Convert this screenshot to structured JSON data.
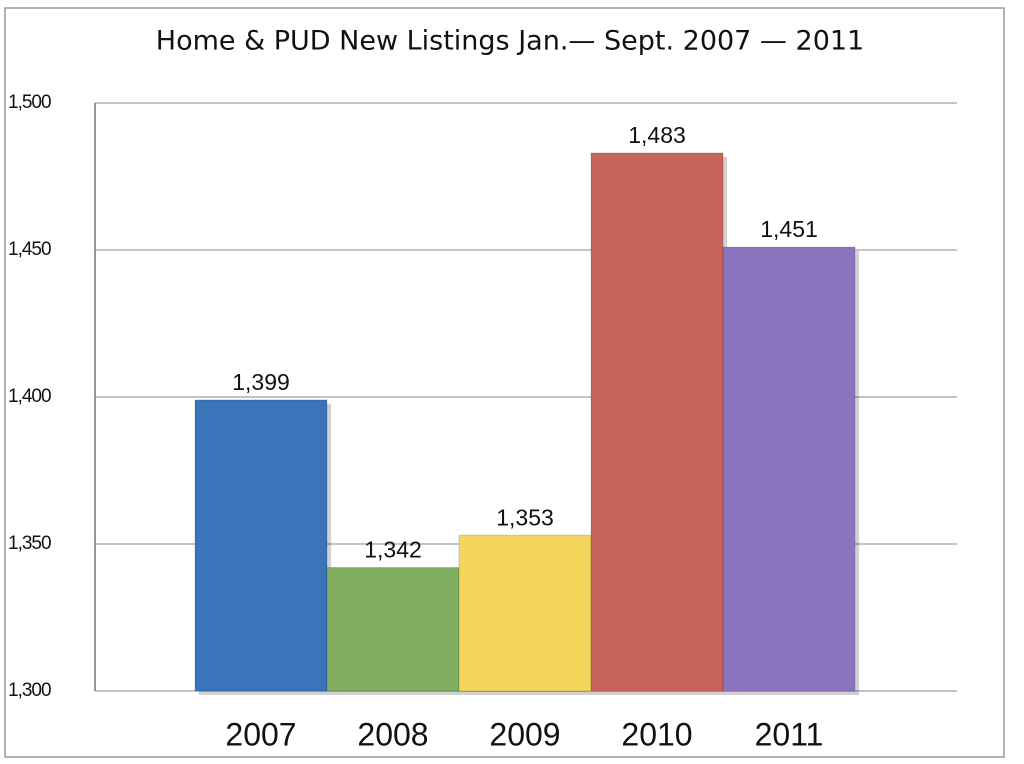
{
  "chart_data": {
    "type": "bar",
    "title": "Home & PUD New Listings Jan.— Sept. 2007 — 2011",
    "categories": [
      "2007",
      "2008",
      "2009",
      "2010",
      "2011"
    ],
    "values": [
      1399,
      1342,
      1353,
      1483,
      1451
    ],
    "value_labels": [
      "1,399",
      "1,342",
      "1,353",
      "1,483",
      "1,451"
    ],
    "colors": [
      "#3b74b9",
      "#80ad5f",
      "#f3d65b",
      "#c9645b",
      "#8b73bf"
    ],
    "ylim": [
      1300,
      1500
    ],
    "yticks": [
      {
        "value": 1300,
        "label": "1,300"
      },
      {
        "value": 1350,
        "label": "1,350"
      },
      {
        "value": 1400,
        "label": "1,400"
      },
      {
        "value": 1450,
        "label": "1,450"
      },
      {
        "value": 1500,
        "label": "1,500"
      }
    ],
    "grid": true
  }
}
